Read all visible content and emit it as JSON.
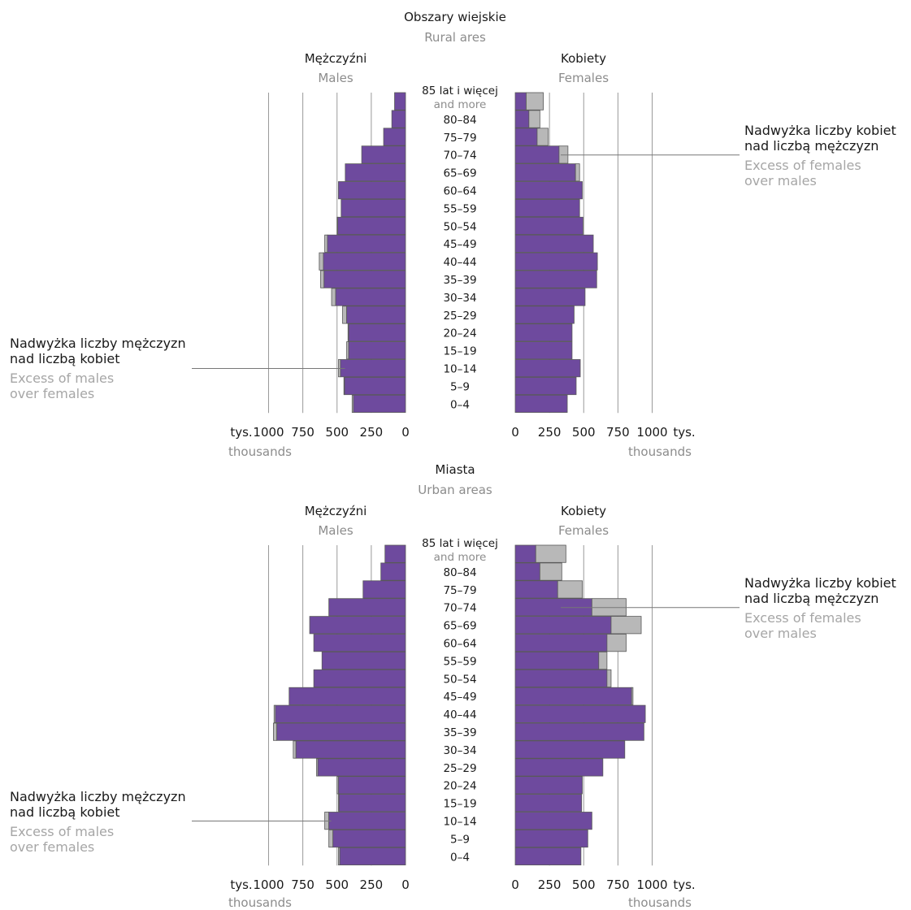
{
  "colors": {
    "main": "#6e4a9e",
    "excess": "#b8b8b8"
  },
  "age_groups": [
    "85 lat i więcej",
    "80–84",
    "75–79",
    "70–74",
    "65–69",
    "60–64",
    "55–59",
    "50–54",
    "45–49",
    "40–44",
    "35–39",
    "30–34",
    "25–29",
    "20–24",
    "15–19",
    "10–14",
    "5–9",
    "0–4"
  ],
  "age_top_sub": "and more",
  "labels": {
    "males_pl": "Mężczyźni",
    "males_en": "Males",
    "females_pl": "Kobiety",
    "females_en": "Females",
    "unit_pl": "tys.",
    "unit_en": "thousands",
    "excess_females_pl_1": "Nadwyżka liczby kobiet",
    "excess_females_pl_2": "nad liczbą mężczyzn",
    "excess_females_en_1": "Excess of females",
    "excess_females_en_2": "over males",
    "excess_males_pl_1": "Nadwyżka liczby mężczyzn",
    "excess_males_pl_2": "nad liczbą kobiet",
    "excess_males_en_1": "Excess of males",
    "excess_males_en_2": "over females"
  },
  "chart_data": [
    {
      "type": "bar",
      "title": "Obszary wiejskie",
      "subtitle": "Rural ares",
      "xlim": [
        0,
        1000
      ],
      "ticks": [
        0,
        250,
        500,
        750,
        1000
      ],
      "categories": [
        "85+",
        "80–84",
        "75–79",
        "70–74",
        "65–69",
        "60–64",
        "55–59",
        "50–54",
        "45–49",
        "40–44",
        "35–39",
        "30–34",
        "25–29",
        "20–24",
        "15–19",
        "10–14",
        "5–9",
        "0–4"
      ],
      "series": [
        {
          "name": "Mężczyźni",
          "values": [
            80,
            100,
            160,
            320,
            440,
            490,
            470,
            500,
            590,
            630,
            620,
            540,
            460,
            420,
            430,
            490,
            450,
            390
          ]
        },
        {
          "name": "Kobiety",
          "values": [
            205,
            180,
            240,
            385,
            470,
            490,
            470,
            495,
            570,
            600,
            595,
            510,
            430,
            415,
            415,
            475,
            445,
            380
          ]
        }
      ]
    },
    {
      "type": "bar",
      "title": "Miasta",
      "subtitle": "Urban areas",
      "xlim": [
        0,
        1000
      ],
      "ticks": [
        0,
        250,
        500,
        750,
        1000
      ],
      "categories": [
        "85+",
        "80–84",
        "75–79",
        "70–74",
        "65–69",
        "60–64",
        "55–59",
        "50–54",
        "45–49",
        "40–44",
        "35–39",
        "30–34",
        "25–29",
        "20–24",
        "15–19",
        "10–14",
        "5–9",
        "0–4"
      ],
      "series": [
        {
          "name": "Mężczyźni",
          "values": [
            150,
            180,
            310,
            560,
            700,
            670,
            610,
            670,
            850,
            960,
            965,
            820,
            650,
            500,
            490,
            590,
            560,
            490
          ]
        },
        {
          "name": "Kobiety",
          "values": [
            370,
            340,
            490,
            810,
            920,
            810,
            670,
            700,
            860,
            950,
            940,
            800,
            640,
            490,
            485,
            560,
            530,
            480
          ]
        }
      ]
    }
  ]
}
